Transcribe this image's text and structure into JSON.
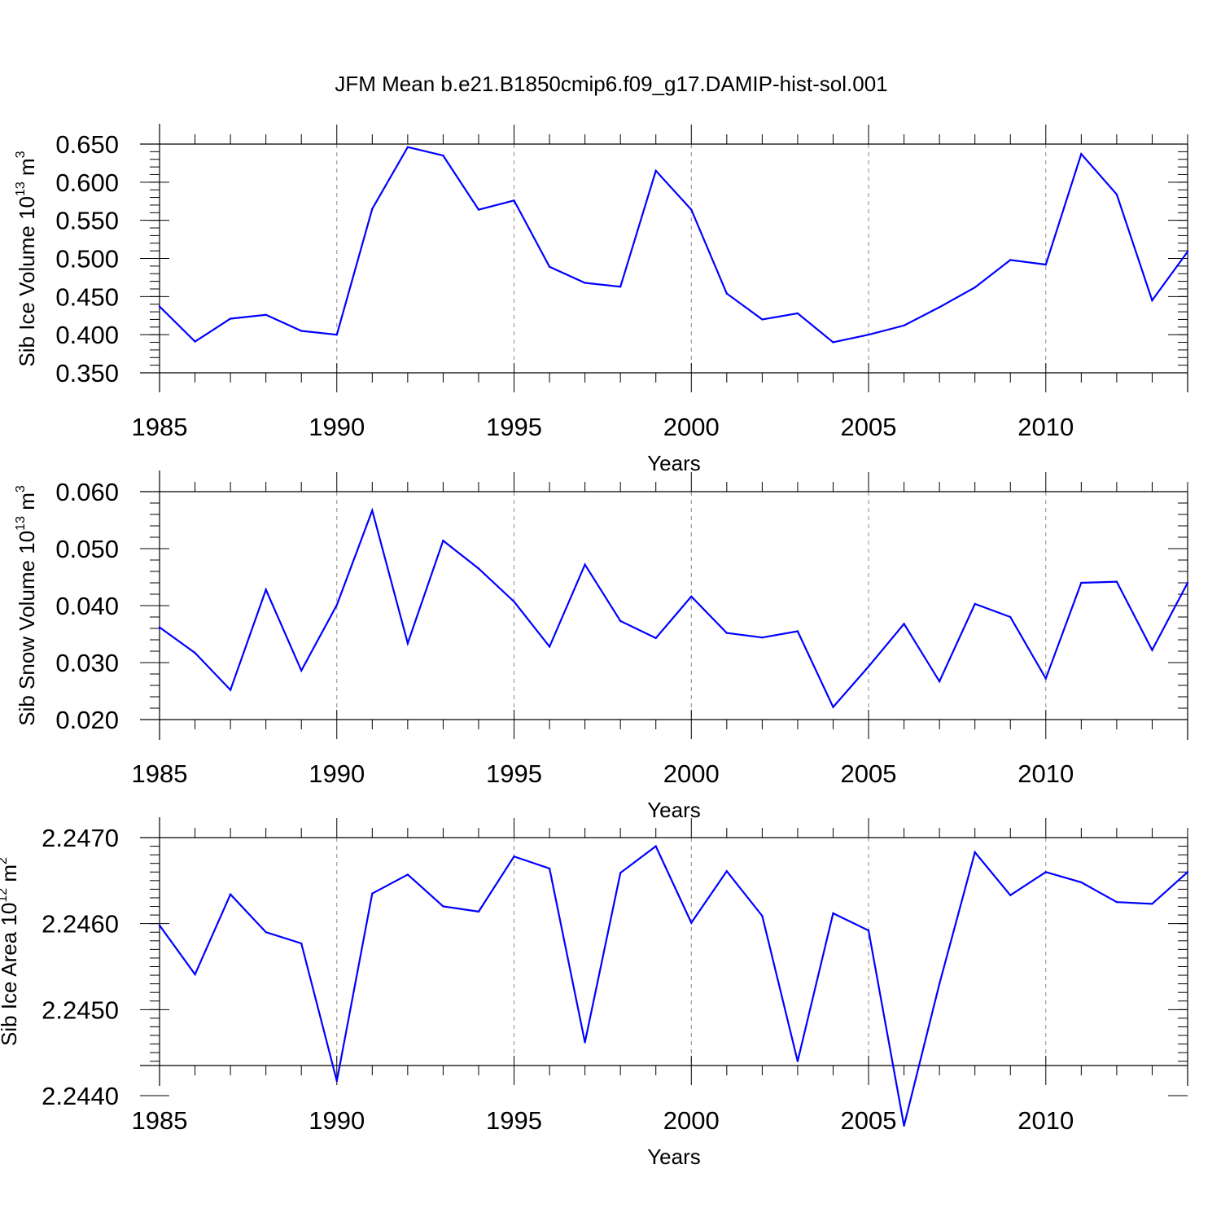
{
  "title": "JFM Mean b.e21.B1850cmip6.f09_g17.DAMIP-hist-sol.001",
  "colors": {
    "line": "#0000ff",
    "grid": "#888888",
    "axis": "#000000"
  },
  "chart_data": [
    {
      "type": "line",
      "name": "ice-volume",
      "ylabel_prefix": "Sib Ice Volume 10",
      "ylabel_exp": "13",
      "ylabel_unit": " m",
      "ylabel_unit_exp": "3",
      "xlabel": "Years",
      "xlim": [
        1985,
        2014
      ],
      "ylim": [
        0.35,
        0.65
      ],
      "y_ticks": [
        0.35,
        0.4,
        0.45,
        0.5,
        0.55,
        0.6,
        0.65
      ],
      "y_tick_labels": [
        "0.350",
        "0.400",
        "0.450",
        "0.500",
        "0.550",
        "0.600",
        "0.650"
      ],
      "y_minor_step": 0.01,
      "x_ticks": [
        1985,
        1990,
        1995,
        2000,
        2005,
        2010
      ],
      "x_tick_labels": [
        "1985",
        "1990",
        "1995",
        "2000",
        "2005",
        "2010"
      ],
      "grid_x": [
        1990,
        1995,
        2000,
        2005,
        2010
      ],
      "x": [
        1985,
        1986,
        1987,
        1988,
        1989,
        1990,
        1991,
        1992,
        1993,
        1994,
        1995,
        1996,
        1997,
        1998,
        1999,
        2000,
        2001,
        2002,
        2003,
        2004,
        2005,
        2006,
        2007,
        2008,
        2009,
        2010,
        2011,
        2012,
        2013,
        2014
      ],
      "values": [
        0.437,
        0.391,
        0.421,
        0.426,
        0.405,
        0.4,
        0.565,
        0.646,
        0.635,
        0.564,
        0.576,
        0.489,
        0.468,
        0.463,
        0.615,
        0.564,
        0.454,
        0.42,
        0.428,
        0.39,
        0.4,
        0.412,
        0.436,
        0.462,
        0.498,
        0.492,
        0.637,
        0.584,
        0.445,
        0.509
      ]
    },
    {
      "type": "line",
      "name": "snow-volume",
      "ylabel_prefix": "Sib Snow Volume 10",
      "ylabel_exp": "13",
      "ylabel_unit": " m",
      "ylabel_unit_exp": "3",
      "xlabel": "Years",
      "xlim": [
        1985,
        2014
      ],
      "ylim": [
        0.02,
        0.06
      ],
      "y_ticks": [
        0.02,
        0.03,
        0.04,
        0.05,
        0.06
      ],
      "y_tick_labels": [
        "0.020",
        "0.030",
        "0.040",
        "0.050",
        "0.060"
      ],
      "y_minor_step": 0.002,
      "x_ticks": [
        1985,
        1990,
        1995,
        2000,
        2005,
        2010
      ],
      "x_tick_labels": [
        "1985",
        "1990",
        "1995",
        "2000",
        "2005",
        "2010"
      ],
      "grid_x": [
        1990,
        1995,
        2000,
        2005,
        2010
      ],
      "x": [
        1985,
        1986,
        1987,
        1988,
        1989,
        1990,
        1991,
        1992,
        1993,
        1994,
        1995,
        1996,
        1997,
        1998,
        1999,
        2000,
        2001,
        2002,
        2003,
        2004,
        2005,
        2006,
        2007,
        2008,
        2009,
        2010,
        2011,
        2012,
        2013,
        2014
      ],
      "values": [
        0.0362,
        0.0317,
        0.0252,
        0.0428,
        0.0286,
        0.0401,
        0.0567,
        0.0334,
        0.0514,
        0.0465,
        0.0407,
        0.0328,
        0.0472,
        0.0373,
        0.0343,
        0.0416,
        0.0352,
        0.0344,
        0.0355,
        0.0222,
        0.0293,
        0.0368,
        0.0267,
        0.0403,
        0.038,
        0.0272,
        0.044,
        0.0442,
        0.0322,
        0.044
      ]
    },
    {
      "type": "line",
      "name": "ice-area",
      "ylabel_prefix": "Sib Ice Area 10",
      "ylabel_exp": "12",
      "ylabel_unit": " m",
      "ylabel_unit_exp": "2",
      "xlabel": "Years",
      "xlim": [
        1985,
        2014
      ],
      "ylim": [
        2.24435,
        2.247
      ],
      "y_ticks": [
        2.244,
        2.245,
        2.246,
        2.247
      ],
      "y_tick_labels": [
        "2.2440",
        "2.2450",
        "2.2460",
        "2.2470"
      ],
      "y_minor_step": 0.0001,
      "x_ticks": [
        1985,
        1990,
        1995,
        2000,
        2005,
        2010
      ],
      "x_tick_labels": [
        "1985",
        "1990",
        "1995",
        "2000",
        "2005",
        "2010"
      ],
      "grid_x": [
        1990,
        1995,
        2000,
        2005,
        2010
      ],
      "x": [
        1985,
        1986,
        1987,
        1988,
        1989,
        1990,
        1991,
        1992,
        1993,
        1994,
        1995,
        1996,
        1997,
        1998,
        1999,
        2000,
        2001,
        2002,
        2003,
        2004,
        2005,
        2006,
        2007,
        2008,
        2009,
        2010,
        2011,
        2012,
        2013,
        2014
      ],
      "values": [
        2.24598,
        2.24541,
        2.24634,
        2.2459,
        2.24577,
        2.24417,
        2.24635,
        2.24657,
        2.2462,
        2.24614,
        2.24678,
        2.24664,
        2.24462,
        2.24659,
        2.2469,
        2.24601,
        2.24661,
        2.24609,
        2.2444,
        2.24612,
        2.24592,
        2.24365,
        2.2453,
        2.24683,
        2.24633,
        2.2466,
        2.24648,
        2.24625,
        2.24623,
        2.2466
      ]
    }
  ]
}
